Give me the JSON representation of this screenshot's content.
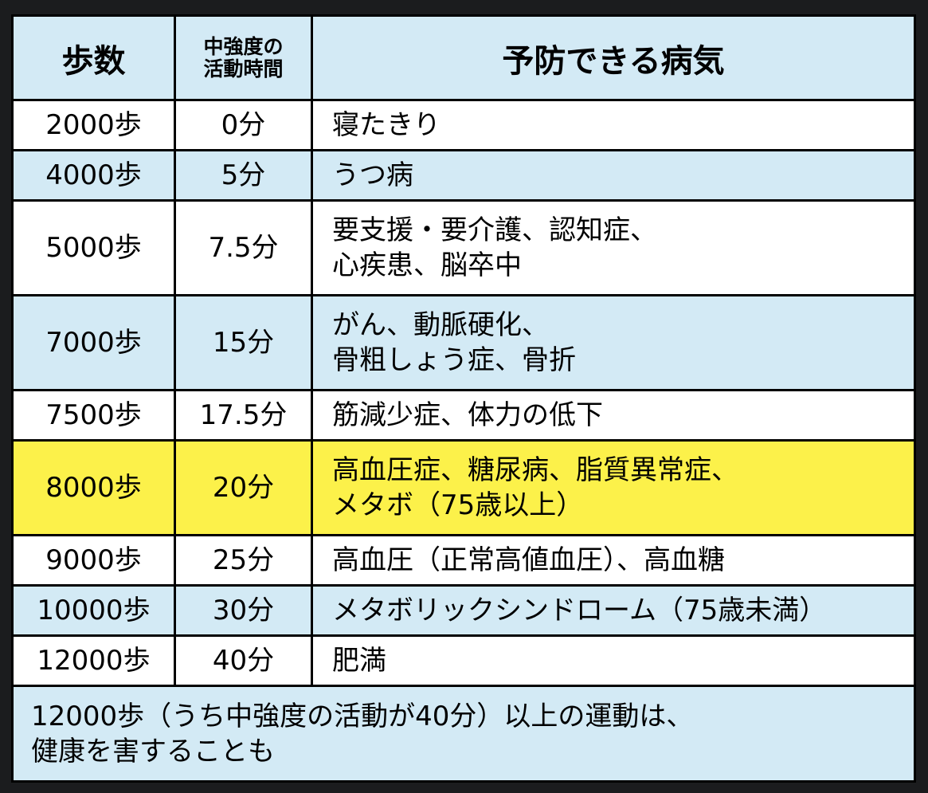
{
  "header": {
    "steps": "歩数",
    "activity_line1": "中強度の",
    "activity_line2": "活動時間",
    "diseases": "予防できる病気"
  },
  "rows": [
    {
      "steps": "2000歩",
      "minutes": "0分",
      "diseases": [
        "寝たきり"
      ],
      "color": "#ffffff"
    },
    {
      "steps": "4000歩",
      "minutes": "5分",
      "diseases": [
        "うつ病"
      ],
      "color": "#d3eaf5"
    },
    {
      "steps": "5000歩",
      "minutes": "7.5分",
      "diseases": [
        "要支援・要介護、認知症、",
        "心疾患、脳卒中"
      ],
      "color": "#ffffff"
    },
    {
      "steps": "7000歩",
      "minutes": "15分",
      "diseases": [
        "がん、動脈硬化、",
        "骨粗しょう症、骨折"
      ],
      "color": "#d3eaf5"
    },
    {
      "steps": "7500歩",
      "minutes": "17.5分",
      "diseases": [
        "筋減少症、体力の低下"
      ],
      "color": "#ffffff"
    },
    {
      "steps": "8000歩",
      "minutes": "20分",
      "diseases": [
        "高血圧症、糖尿病、脂質異常症、",
        "メタボ（75歳以上）"
      ],
      "color": "#fcf14a"
    },
    {
      "steps": "9000歩",
      "minutes": "25分",
      "diseases": [
        "高血圧（正常高値血圧）、高血糖"
      ],
      "color": "#ffffff"
    },
    {
      "steps": "10000歩",
      "minutes": "30分",
      "diseases": [
        "メタボリックシンドローム（75歳未満）"
      ],
      "color": "#d3eaf5"
    },
    {
      "steps": "12000歩",
      "minutes": "40分",
      "diseases": [
        "肥満"
      ],
      "color": "#ffffff"
    }
  ],
  "footer": {
    "line1": "12000歩（うち中強度の活動が40分）以上の運動は、",
    "line2": "健康を害することも"
  }
}
